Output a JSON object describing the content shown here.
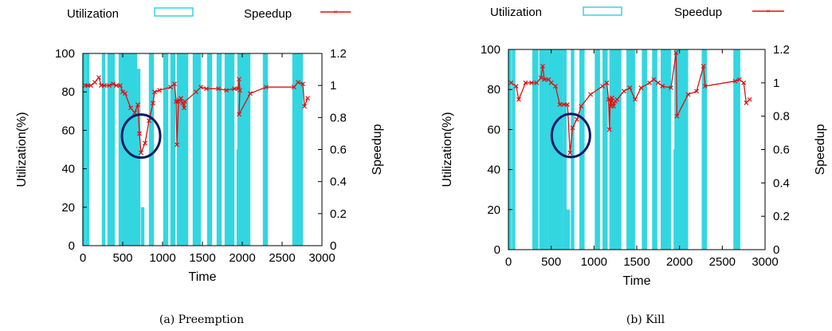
{
  "legend": {
    "utilization": "Utilization",
    "speedup": "Speedup"
  },
  "colors": {
    "utilization": "#33d6e0",
    "speedup": "#dd1111",
    "circle": "#0a1a66",
    "axis": "#000000"
  },
  "chart_data": [
    {
      "type": "bar+line",
      "caption": "(a) Preemption",
      "xlabel": "Time",
      "ylabel": "Utilization(%)",
      "y2label": "Speedup",
      "xlim": [
        0,
        3000
      ],
      "ylim": [
        0,
        100
      ],
      "y2lim": [
        0,
        1.2
      ],
      "xticks": [
        "0",
        "500",
        "1000",
        "1500",
        "2000",
        "2500",
        "3000"
      ],
      "yticks": [
        "0",
        "20",
        "40",
        "60",
        "80",
        "100"
      ],
      "y2ticks": [
        "0",
        "0.2",
        "0.4",
        "0.6",
        "0.8",
        "1",
        "1.2"
      ],
      "grid": false,
      "legend_position": "top",
      "series": [
        {
          "name": "Utilization",
          "kind": "bar",
          "points": [
            [
              15,
              100
            ],
            [
              60,
              100
            ],
            [
              260,
              100
            ],
            [
              330,
              100
            ],
            [
              360,
              100
            ],
            [
              380,
              100
            ],
            [
              470,
              100
            ],
            [
              500,
              100
            ],
            [
              520,
              100
            ],
            [
              540,
              100
            ],
            [
              560,
              100
            ],
            [
              580,
              100
            ],
            [
              600,
              100
            ],
            [
              620,
              100
            ],
            [
              660,
              100
            ],
            [
              700,
              92
            ],
            [
              750,
              20
            ],
            [
              850,
              100
            ],
            [
              870,
              100
            ],
            [
              1030,
              100
            ],
            [
              1050,
              100
            ],
            [
              1120,
              100
            ],
            [
              1140,
              100
            ],
            [
              1200,
              100
            ],
            [
              1210,
              100
            ],
            [
              1230,
              100
            ],
            [
              1250,
              100
            ],
            [
              1270,
              100
            ],
            [
              1300,
              100
            ],
            [
              1400,
              100
            ],
            [
              1420,
              100
            ],
            [
              1440,
              100
            ],
            [
              1460,
              100
            ],
            [
              1580,
              100
            ],
            [
              1600,
              100
            ],
            [
              1700,
              100
            ],
            [
              1720,
              100
            ],
            [
              1800,
              100
            ],
            [
              1820,
              100
            ],
            [
              1840,
              100
            ],
            [
              1860,
              100
            ],
            [
              1880,
              100
            ],
            [
              1950,
              50
            ],
            [
              1960,
              100
            ],
            [
              2000,
              100
            ],
            [
              2010,
              100
            ],
            [
              2020,
              100
            ],
            [
              2040,
              100
            ],
            [
              2060,
              100
            ],
            [
              2080,
              100
            ],
            [
              2280,
              100
            ],
            [
              2300,
              100
            ],
            [
              2650,
              100
            ],
            [
              2670,
              100
            ],
            [
              2690,
              100
            ],
            [
              2710,
              100
            ],
            [
              2740,
              100
            ]
          ]
        },
        {
          "name": "Speedup",
          "kind": "line",
          "points": [
            [
              30,
              1.0
            ],
            [
              60,
              1.0
            ],
            [
              100,
              1.0
            ],
            [
              150,
              1.02
            ],
            [
              200,
              1.05
            ],
            [
              230,
              1.0
            ],
            [
              270,
              1.0
            ],
            [
              330,
              1.0
            ],
            [
              380,
              1.01
            ],
            [
              420,
              1.0
            ],
            [
              470,
              1.0
            ],
            [
              500,
              0.96
            ],
            [
              530,
              0.95
            ],
            [
              600,
              0.86
            ],
            [
              650,
              0.83
            ],
            [
              690,
              0.88
            ],
            [
              710,
              0.7
            ],
            [
              730,
              0.58
            ],
            [
              780,
              0.64
            ],
            [
              830,
              0.78
            ],
            [
              880,
              0.89
            ],
            [
              900,
              0.96
            ],
            [
              960,
              0.97
            ],
            [
              1100,
              0.99
            ],
            [
              1150,
              1.01
            ],
            [
              1170,
              0.9
            ],
            [
              1180,
              0.63
            ],
            [
              1200,
              0.9
            ],
            [
              1210,
              0.91
            ],
            [
              1230,
              0.92
            ],
            [
              1250,
              0.89
            ],
            [
              1270,
              0.86
            ],
            [
              1280,
              0.9
            ],
            [
              1420,
              0.96
            ],
            [
              1480,
              0.99
            ],
            [
              1550,
              0.98
            ],
            [
              1700,
              0.98
            ],
            [
              1800,
              0.97
            ],
            [
              1900,
              0.98
            ],
            [
              1950,
              0.98
            ],
            [
              1960,
              1.04
            ],
            [
              1970,
              0.97
            ],
            [
              1960,
              0.82
            ],
            [
              2100,
              0.95
            ],
            [
              2300,
              0.99
            ],
            [
              2650,
              0.99
            ],
            [
              2700,
              1.02
            ],
            [
              2760,
              1.01
            ],
            [
              2780,
              0.87
            ],
            [
              2820,
              0.92
            ]
          ]
        }
      ],
      "annotation": {
        "shape": "ellipse",
        "cx": 730,
        "cy": 57
      }
    },
    {
      "type": "bar+line",
      "caption": "(b) Kill",
      "xlabel": "Time",
      "ylabel": "Utilization(%)",
      "y2label": "Speedup",
      "xlim": [
        0,
        3000
      ],
      "ylim": [
        0,
        100
      ],
      "y2lim": [
        0,
        1.2
      ],
      "xticks": [
        "0",
        "500",
        "1000",
        "1500",
        "2000",
        "2500",
        "3000"
      ],
      "yticks": [
        "0",
        "20",
        "40",
        "60",
        "80",
        "100"
      ],
      "y2ticks": [
        "0",
        "0.2",
        "0.4",
        "0.6",
        "0.8",
        "1",
        "1.2"
      ],
      "grid": false,
      "legend_position": "top",
      "series": [
        {
          "name": "Utilization",
          "kind": "bar",
          "points": [
            [
              15,
              100
            ],
            [
              60,
              100
            ],
            [
              300,
              100
            ],
            [
              330,
              100
            ],
            [
              380,
              100
            ],
            [
              400,
              100
            ],
            [
              440,
              100
            ],
            [
              480,
              100
            ],
            [
              500,
              100
            ],
            [
              520,
              100
            ],
            [
              540,
              100
            ],
            [
              560,
              100
            ],
            [
              580,
              100
            ],
            [
              600,
              100
            ],
            [
              620,
              100
            ],
            [
              660,
              100
            ],
            [
              700,
              20
            ],
            [
              750,
              100
            ],
            [
              850,
              100
            ],
            [
              870,
              100
            ],
            [
              1030,
              100
            ],
            [
              1050,
              100
            ],
            [
              1120,
              100
            ],
            [
              1140,
              100
            ],
            [
              1200,
              100
            ],
            [
              1210,
              100
            ],
            [
              1230,
              100
            ],
            [
              1250,
              100
            ],
            [
              1270,
              100
            ],
            [
              1300,
              100
            ],
            [
              1400,
              100
            ],
            [
              1420,
              100
            ],
            [
              1440,
              100
            ],
            [
              1460,
              100
            ],
            [
              1580,
              100
            ],
            [
              1600,
              100
            ],
            [
              1700,
              100
            ],
            [
              1720,
              100
            ],
            [
              1800,
              100
            ],
            [
              1820,
              100
            ],
            [
              1840,
              100
            ],
            [
              1860,
              100
            ],
            [
              1880,
              100
            ],
            [
              1950,
              50
            ],
            [
              1960,
              100
            ],
            [
              2000,
              100
            ],
            [
              2010,
              100
            ],
            [
              2020,
              100
            ],
            [
              2040,
              100
            ],
            [
              2060,
              100
            ],
            [
              2080,
              100
            ],
            [
              2280,
              100
            ],
            [
              2300,
              100
            ],
            [
              2650,
              100
            ],
            [
              2670,
              100
            ],
            [
              2690,
              100
            ]
          ]
        },
        {
          "name": "Speedup",
          "kind": "line",
          "points": [
            [
              30,
              1.0
            ],
            [
              90,
              0.98
            ],
            [
              120,
              0.9
            ],
            [
              200,
              1.0
            ],
            [
              270,
              1.0
            ],
            [
              330,
              1.0
            ],
            [
              380,
              1.03
            ],
            [
              400,
              1.1
            ],
            [
              420,
              1.02
            ],
            [
              470,
              1.02
            ],
            [
              500,
              1.0
            ],
            [
              550,
              0.98
            ],
            [
              600,
              0.87
            ],
            [
              650,
              0.87
            ],
            [
              690,
              0.87
            ],
            [
              720,
              0.58
            ],
            [
              750,
              0.73
            ],
            [
              800,
              0.78
            ],
            [
              850,
              0.86
            ],
            [
              960,
              0.93
            ],
            [
              1100,
              0.98
            ],
            [
              1150,
              1.0
            ],
            [
              1170,
              0.9
            ],
            [
              1180,
              0.72
            ],
            [
              1190,
              0.9
            ],
            [
              1200,
              0.86
            ],
            [
              1210,
              0.91
            ],
            [
              1230,
              0.86
            ],
            [
              1250,
              0.89
            ],
            [
              1270,
              0.9
            ],
            [
              1350,
              0.95
            ],
            [
              1420,
              0.97
            ],
            [
              1480,
              0.9
            ],
            [
              1550,
              0.97
            ],
            [
              1650,
              1.0
            ],
            [
              1700,
              1.02
            ],
            [
              1750,
              1.0
            ],
            [
              1800,
              0.98
            ],
            [
              1900,
              0.97
            ],
            [
              1960,
              1.18
            ],
            [
              1970,
              0.8
            ],
            [
              2100,
              0.93
            ],
            [
              2200,
              0.95
            ],
            [
              2280,
              1.1
            ],
            [
              2300,
              0.98
            ],
            [
              2650,
              1.01
            ],
            [
              2700,
              1.02
            ],
            [
              2750,
              1.0
            ],
            [
              2780,
              0.88
            ],
            [
              2820,
              0.9
            ]
          ]
        }
      ],
      "annotation": {
        "shape": "ellipse",
        "cx": 730,
        "cy": 57
      }
    }
  ]
}
